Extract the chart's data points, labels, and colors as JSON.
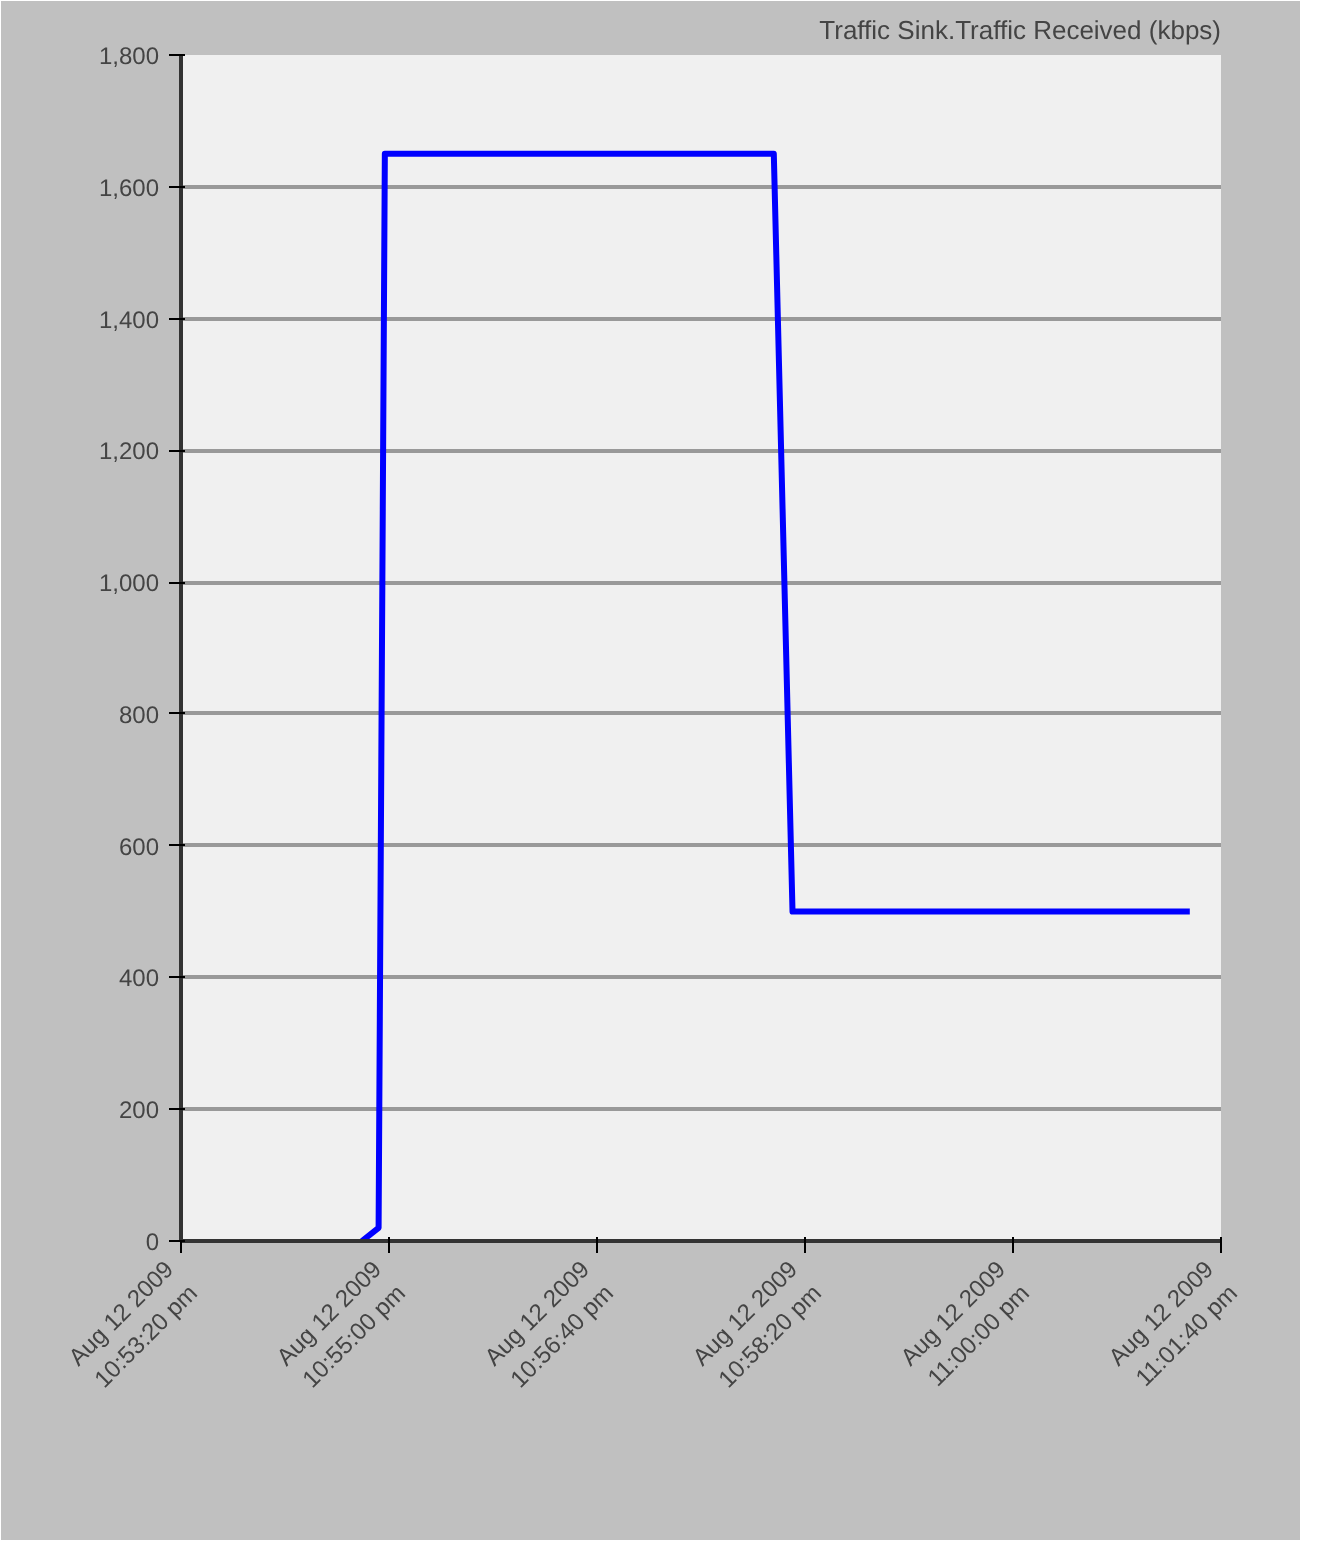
{
  "chart_data": {
    "type": "line",
    "title": "Traffic Sink.Traffic Received (kbps)",
    "x": [
      "2009-08-12T22:54:47",
      "2009-08-12T22:54:55",
      "2009-08-12T22:54:58",
      "2009-08-12T22:58:05",
      "2009-08-12T22:58:14",
      "2009-08-12T23:01:25"
    ],
    "series": [
      {
        "color": "#0000ff",
        "values": [
          0,
          20,
          1650,
          1650,
          500,
          500
        ]
      }
    ],
    "xlim": [
      "2009-08-12T22:53:20",
      "2009-08-12T23:01:40"
    ],
    "xticks": [
      {
        "value": "2009-08-12T22:53:20",
        "label": "Aug 12 2009\n10:53:20 pm"
      },
      {
        "value": "2009-08-12T22:55:00",
        "label": "Aug 12 2009\n10:55:00 pm"
      },
      {
        "value": "2009-08-12T22:56:40",
        "label": "Aug 12 2009\n10:56:40 pm"
      },
      {
        "value": "2009-08-12T22:58:20",
        "label": "Aug 12 2009\n10:58:20 pm"
      },
      {
        "value": "2009-08-12T23:00:00",
        "label": "Aug 12 2009\n11:00:00 pm"
      },
      {
        "value": "2009-08-12T23:01:40",
        "label": "Aug 12 2009\n11:01:40 pm"
      }
    ],
    "ylim": [
      0,
      1800
    ],
    "yticks": [
      0,
      200,
      400,
      600,
      800,
      {
        "value": 1000,
        "label": "1,000"
      },
      {
        "value": 1200,
        "label": "1,200"
      },
      {
        "value": 1400,
        "label": "1,400"
      },
      {
        "value": 1600,
        "label": "1,600"
      },
      {
        "value": 1800,
        "label": "1,800"
      }
    ],
    "grid": "y",
    "line_style": "solid"
  }
}
